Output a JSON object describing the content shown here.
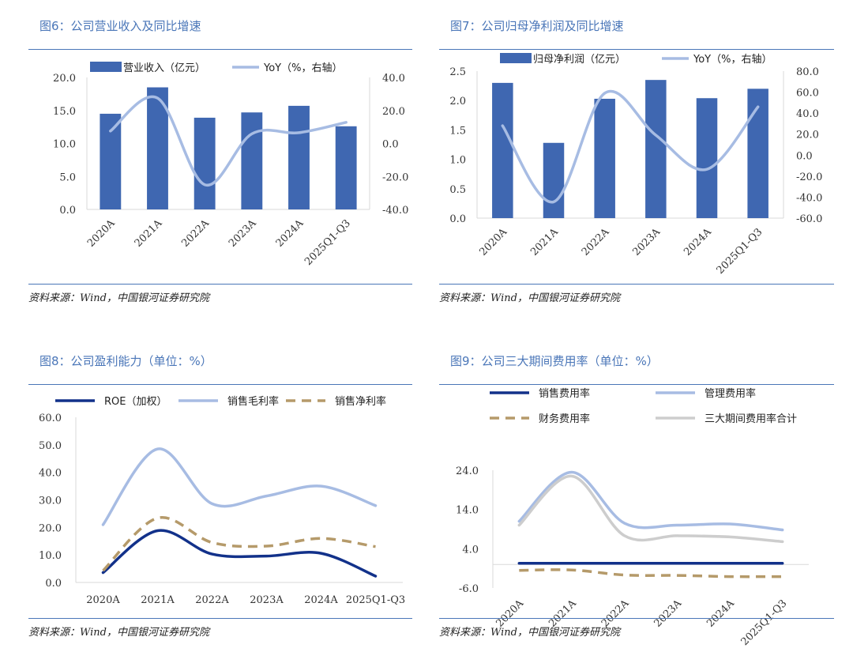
{
  "panels": [
    {
      "title": "图6：公司营业收入及同比增速",
      "source": "资料来源：Wind，中国银河证券研究院",
      "legend": [
        "营业收入（亿元）",
        "YoY（%，右轴）"
      ],
      "y_left_ticks": [
        "20.0",
        "15.0",
        "10.0",
        "5.0",
        "0.0"
      ],
      "y_right_ticks": [
        "40.0",
        "20.0",
        "0.0",
        "-20.0",
        "-40.0"
      ]
    },
    {
      "title": "图7：公司归母净利润及同比增速",
      "source": "资料来源：Wind，中国银河证券研究院",
      "legend": [
        "归母净利润（亿元）",
        "YoY（%，右轴）"
      ],
      "y_left_ticks": [
        "2.5",
        "2.0",
        "1.5",
        "1.0",
        "0.5",
        "0.0"
      ],
      "y_right_ticks": [
        "80.0",
        "60.0",
        "40.0",
        "20.0",
        "0.0",
        "-20.0",
        "-40.0",
        "-60.0"
      ]
    },
    {
      "title": "图8：公司盈利能力（单位：%）",
      "source": "资料来源：Wind，中国银河证券研究院",
      "legend": [
        "ROE（加权）",
        "销售毛利率",
        "销售净利率"
      ],
      "y_ticks": [
        "60.0",
        "50.0",
        "40.0",
        "30.0",
        "20.0",
        "10.0",
        "0.0"
      ]
    },
    {
      "title": "图9：公司三大期间费用率（单位：%）",
      "source": "资料来源：Wind，中国银河证券研究院",
      "legend": [
        "销售费用率",
        "管理费用率",
        "财务费用率",
        "三大期间费用率合计"
      ],
      "y_ticks": [
        "24.0",
        "14.0",
        "4.0",
        "-6.0"
      ]
    }
  ],
  "colors": {
    "bar": "#3f67b1",
    "line_light": "#a7bce3",
    "roe": "#12318a",
    "gold": "#b59a6a",
    "gray": "#cdcdcd",
    "title": "#4a76b8"
  },
  "chart_data": [
    {
      "type": "bar",
      "title": "图6：公司营业收入及同比增速",
      "categories": [
        "2020A",
        "2021A",
        "2022A",
        "2023A",
        "2024A",
        "2025Q1-Q3"
      ],
      "series": [
        {
          "name": "营业收入（亿元）",
          "type": "bar",
          "axis": "left",
          "values": [
            14.5,
            18.5,
            13.9,
            14.7,
            15.7,
            12.6
          ]
        },
        {
          "name": "YoY（%，右轴）",
          "type": "line",
          "axis": "right",
          "values": [
            7.5,
            27.5,
            -25.0,
            5.8,
            6.5,
            12.8
          ]
        }
      ],
      "ylim_left": [
        0,
        20
      ],
      "ylim_right": [
        -40,
        40
      ]
    },
    {
      "type": "bar",
      "title": "图7：公司归母净利润及同比增速",
      "categories": [
        "2020A",
        "2021A",
        "2022A",
        "2023A",
        "2024A",
        "2025Q1-Q3"
      ],
      "series": [
        {
          "name": "归母净利润（亿元）",
          "type": "bar",
          "axis": "left",
          "values": [
            2.3,
            1.28,
            2.03,
            2.35,
            2.04,
            2.2
          ]
        },
        {
          "name": "YoY（%，右轴）",
          "type": "line",
          "axis": "right",
          "values": [
            28,
            -44.5,
            59,
            19,
            -13.5,
            46
          ]
        }
      ],
      "ylim_left": [
        0,
        2.5
      ],
      "ylim_right": [
        -60,
        80
      ]
    },
    {
      "type": "line",
      "title": "图8：公司盈利能力（单位：%）",
      "categories": [
        "2020A",
        "2021A",
        "2022A",
        "2023A",
        "2024A",
        "2025Q1-Q3"
      ],
      "series": [
        {
          "name": "ROE（加权）",
          "values": [
            3.6,
            18.8,
            10.3,
            9.6,
            10.6,
            2.3
          ]
        },
        {
          "name": "销售毛利率",
          "values": [
            21.0,
            48.5,
            28.6,
            31.4,
            35.0,
            27.9
          ]
        },
        {
          "name": "销售净利率",
          "values": [
            4.3,
            23.4,
            14.5,
            13.2,
            16.0,
            13.0
          ]
        }
      ],
      "ylim": [
        0,
        60
      ]
    },
    {
      "type": "line",
      "title": "图9：公司三大期间费用率（单位：%）",
      "categories": [
        "2020A",
        "2021A",
        "2022A",
        "2023A",
        "2024A",
        "2025Q1-Q3"
      ],
      "series": [
        {
          "name": "销售费用率",
          "values": [
            0.3,
            0.3,
            0.3,
            0.3,
            0.3,
            0.3
          ]
        },
        {
          "name": "管理费用率",
          "values": [
            11.0,
            23.5,
            10.5,
            10.0,
            10.3,
            8.8
          ]
        },
        {
          "name": "财务费用率",
          "values": [
            -1.5,
            -1.4,
            -2.7,
            -2.8,
            -3.1,
            -3.1
          ]
        },
        {
          "name": "三大期间费用率合计",
          "values": [
            10.0,
            22.5,
            7.3,
            7.3,
            7.0,
            5.8
          ]
        }
      ],
      "ylim": [
        -6,
        24
      ]
    }
  ]
}
